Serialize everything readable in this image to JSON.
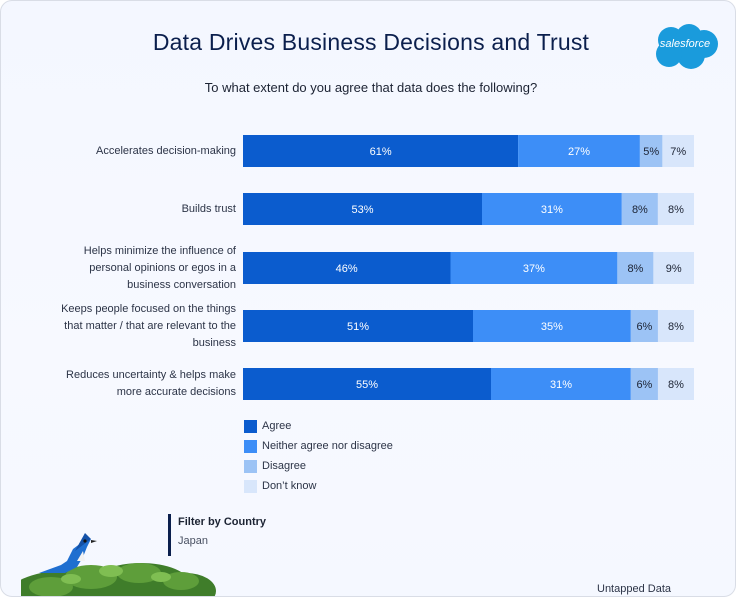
{
  "header": {
    "title": "Data Drives Business Decisions and Trust",
    "logo_text": "salesforce"
  },
  "colors": {
    "agree": "#0b5cce",
    "neither": "#3d8ef7",
    "disagree": "#9cc3f5",
    "dont_know": "#d8e6fb",
    "logo": "#1a9bdc"
  },
  "chart_data": {
    "type": "bar",
    "orientation": "horizontal",
    "stacked": true,
    "title": "To what extent do you agree that data does the following?",
    "categories": [
      "Accelerates decision-making",
      "Builds trust",
      "Helps minimize the influence of personal opinions or egos in a business conversation",
      "Keeps people focused on the things that matter / that are relevant to the business",
      "Reduces uncertainty & helps make more accurate decisions"
    ],
    "category_lines": [
      [
        "Accelerates decision-making"
      ],
      [
        "Builds trust"
      ],
      [
        "Helps minimize the influence of",
        "personal opinions or egos in a",
        "business conversation"
      ],
      [
        "Keeps people focused on the things",
        "that matter / that are relevant to the",
        "business"
      ],
      [
        "Reduces uncertainty & helps make",
        "more accurate decisions"
      ]
    ],
    "series": [
      {
        "name": "Agree",
        "values": [
          61,
          53,
          46,
          51,
          55
        ]
      },
      {
        "name": "Neither agree nor disagree",
        "values": [
          27,
          31,
          37,
          35,
          31
        ]
      },
      {
        "name": "Disagree",
        "values": [
          5,
          8,
          8,
          6,
          6
        ]
      },
      {
        "name": "Don't know",
        "values": [
          7,
          8,
          9,
          8,
          8
        ]
      }
    ],
    "value_labels": [
      [
        "61%",
        "27%",
        "5%",
        "7%"
      ],
      [
        "53%",
        "31%",
        "8%",
        "8%"
      ],
      [
        "46%",
        "37%",
        "8%",
        "9%"
      ],
      [
        "51%",
        "35%",
        "6%",
        "8%"
      ],
      [
        "55%",
        "31%",
        "6%",
        "8%"
      ]
    ],
    "xlim": [
      0,
      100
    ],
    "legend": [
      "Agree",
      "Neither agree nor disagree",
      "Disagree",
      "Don’t know"
    ],
    "legend_position": "bottom"
  },
  "filter": {
    "title": "Filter by Country",
    "value": "Japan"
  },
  "footer": {
    "source": "Untapped Data"
  }
}
